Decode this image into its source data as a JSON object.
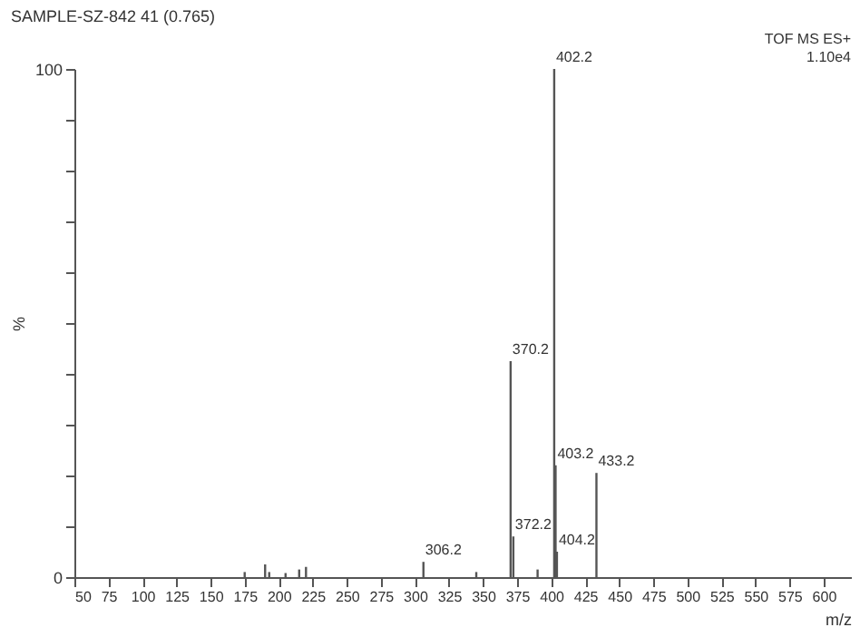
{
  "chart_data": {
    "type": "bar",
    "title": "SAMPLE-SZ-842 41 (0.765)",
    "annotations": [
      "TOF MS ES+",
      "1.10e4",
      {
        "text": "306.2",
        "x": 306.2,
        "y": 3
      },
      {
        "text": "370.2",
        "x": 370.2,
        "y": 42.5
      },
      {
        "text": "372.2",
        "x": 372.2,
        "y": 8
      },
      {
        "text": "402.2",
        "x": 402.2,
        "y": 100
      },
      {
        "text": "403.2",
        "x": 403.2,
        "y": 22
      },
      {
        "text": "404.2",
        "x": 404.2,
        "y": 5
      },
      {
        "text": "433.2",
        "x": 433.2,
        "y": 20.5
      }
    ],
    "xlabel": "m/z",
    "ylabel": "%",
    "x": [
      175,
      190,
      193,
      205,
      215,
      220,
      306.2,
      345,
      370.2,
      372.2,
      390,
      402.2,
      403.2,
      404.2,
      433.2
    ],
    "values": [
      1,
      2.5,
      1,
      0.8,
      1.5,
      2,
      3,
      1,
      42.5,
      8,
      1.5,
      100,
      22,
      5,
      20.5
    ],
    "color": "#555555",
    "xlim": [
      50,
      620
    ],
    "xticks": [
      50,
      75,
      100,
      125,
      150,
      175,
      200,
      225,
      250,
      275,
      300,
      325,
      350,
      375,
      400,
      425,
      450,
      475,
      500,
      525,
      550,
      575,
      600
    ],
    "ylim": [
      0,
      100
    ],
    "yticks": [
      0,
      {
        "value": 10,
        "label": null
      },
      {
        "value": 20,
        "label": null
      },
      {
        "value": 30,
        "label": null
      },
      {
        "value": 40,
        "label": null
      },
      {
        "value": 50,
        "label": null
      },
      {
        "value": 60,
        "label": null
      },
      {
        "value": 70,
        "label": null
      },
      {
        "value": 80,
        "label": null
      },
      {
        "value": 90,
        "label": null
      },
      100
    ],
    "grid": false
  }
}
